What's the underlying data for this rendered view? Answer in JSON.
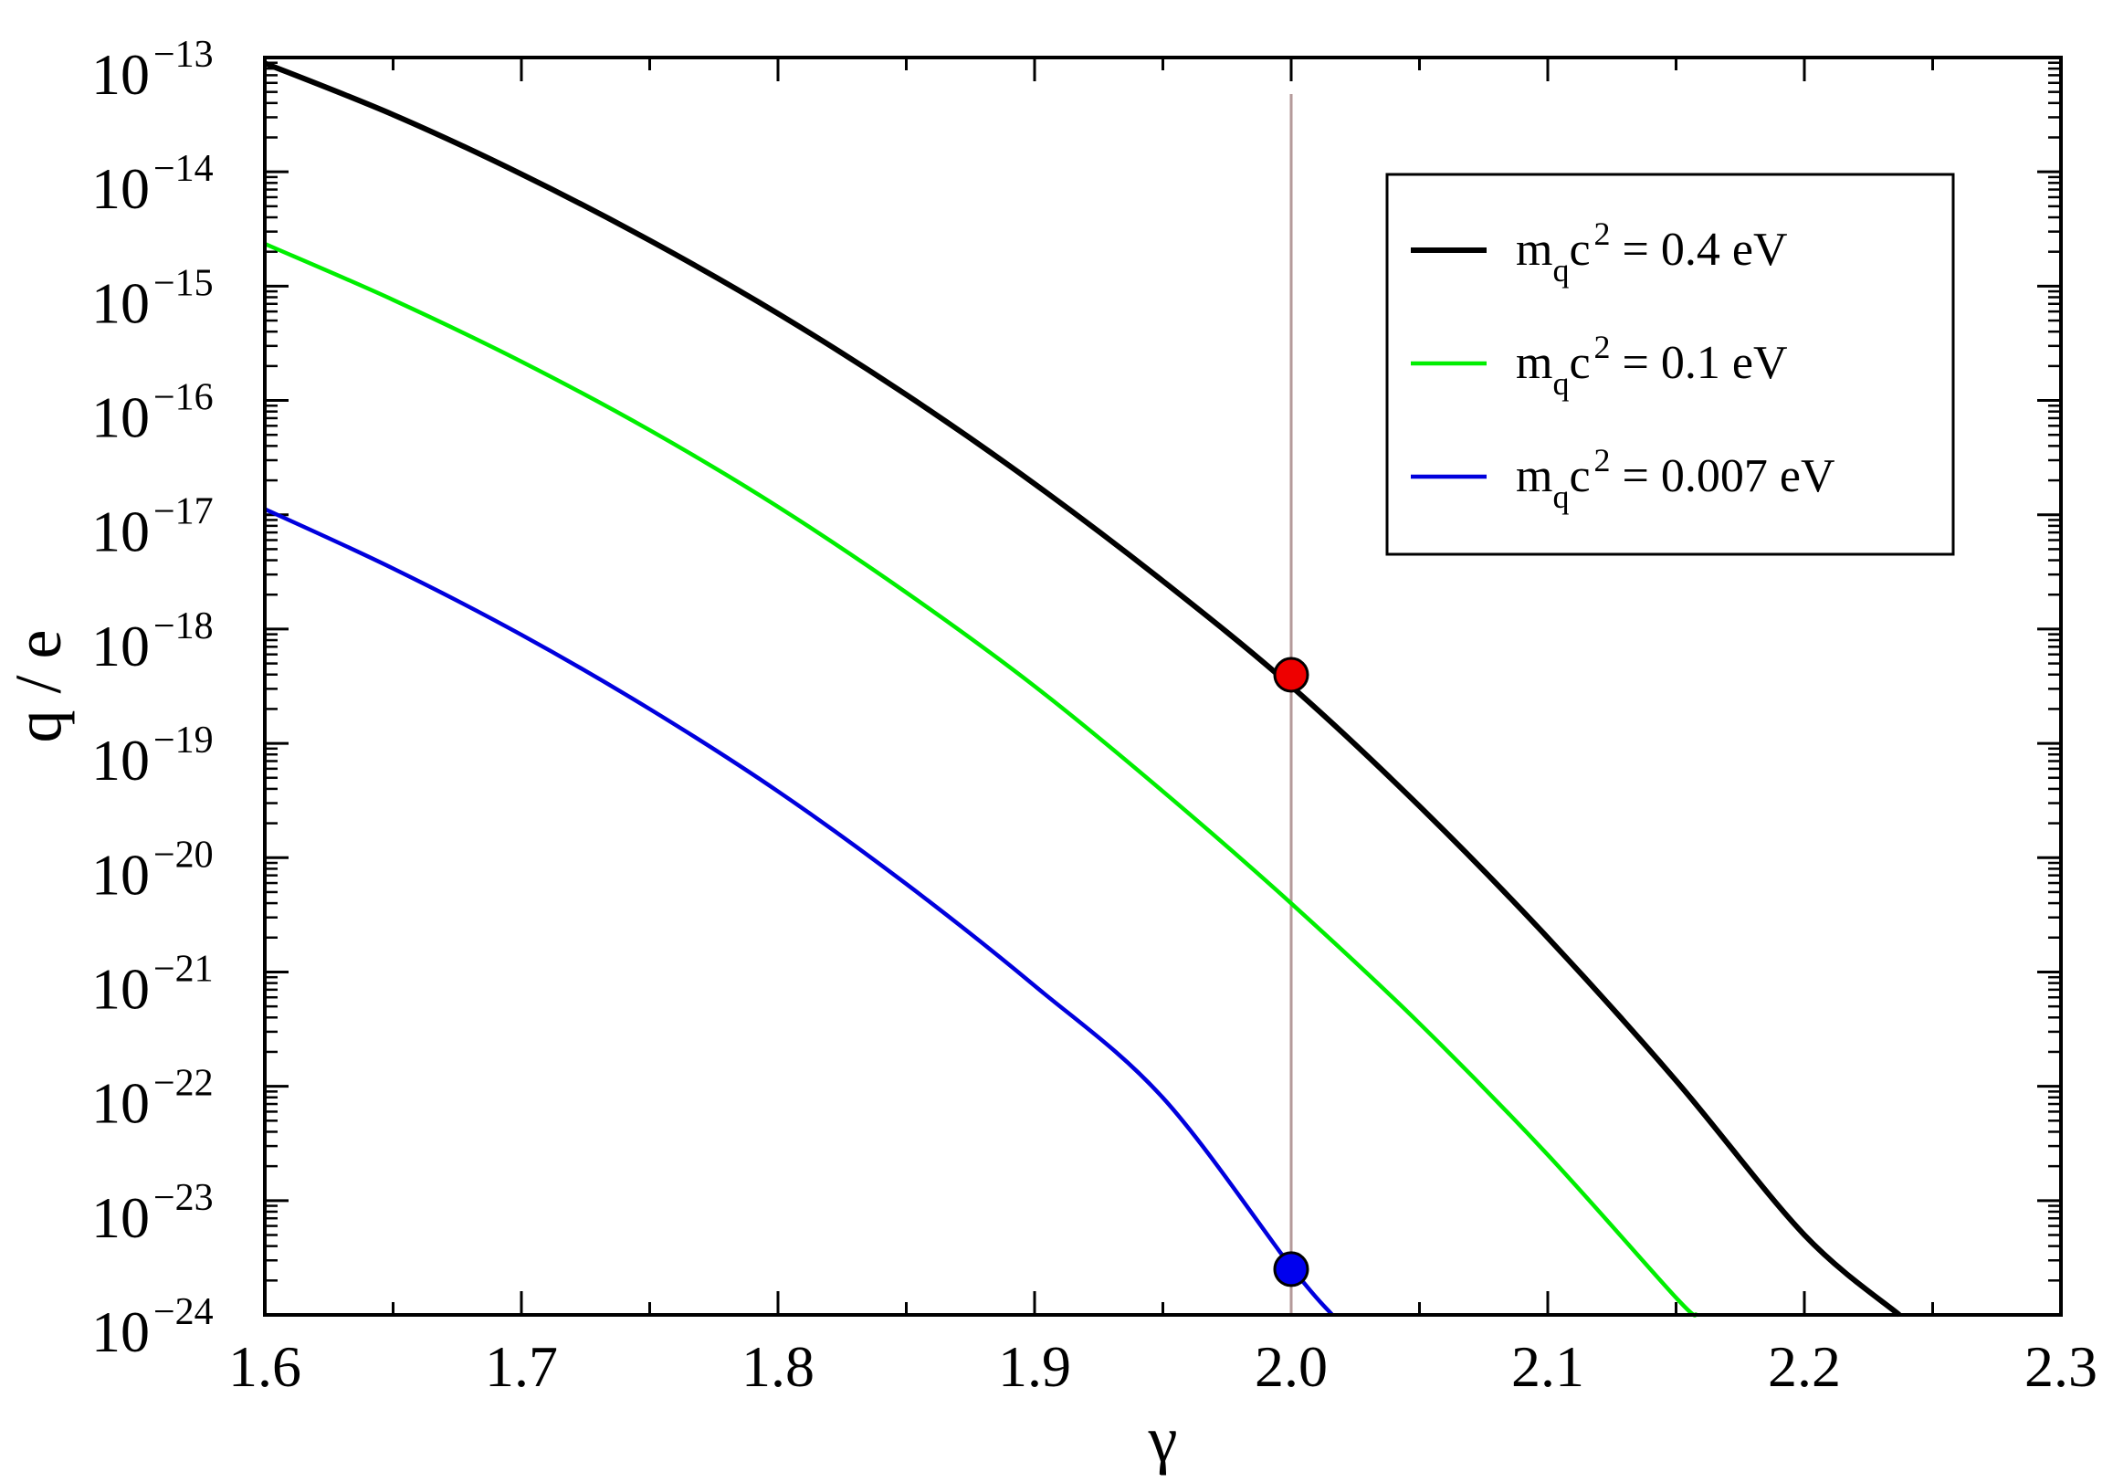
{
  "chart_data": {
    "type": "line",
    "xlabel": "γ",
    "ylabel": "q / e",
    "xlim": [
      1.6,
      2.3
    ],
    "ylim": [
      -24,
      -13
    ],
    "yscale": "log",
    "x_ticks": [
      "1.6",
      "1.7",
      "1.8",
      "1.9",
      "2.0",
      "2.1",
      "2.2",
      "2.3"
    ],
    "x_tick_values": [
      1.6,
      1.7,
      1.8,
      1.9,
      2.0,
      2.1,
      2.2,
      2.3
    ],
    "y_ticks_base": "10",
    "y_tick_exponents": [
      "−13",
      "−14",
      "−15",
      "−16",
      "−17",
      "−18",
      "−19",
      "−20",
      "−21",
      "−22",
      "−23",
      "−24"
    ],
    "y_tick_values": [
      -13,
      -14,
      -15,
      -16,
      -17,
      -18,
      -19,
      -20,
      -21,
      -22,
      -23,
      -24
    ],
    "grid": false,
    "legend_position": "top-right",
    "vertical_line": {
      "x": 2.0,
      "color": "#b49a9a"
    },
    "series": [
      {
        "legend_prefix": "m",
        "legend_sub": "q",
        "legend_mid": "c",
        "legend_sup": "2",
        "legend_suffix": " = 0.4 eV",
        "color": "#000000",
        "x": [
          1.6,
          1.65,
          1.7,
          1.75,
          1.8,
          1.85,
          1.9,
          1.95,
          2.0,
          2.05,
          2.1,
          2.15,
          2.2,
          2.237
        ],
        "log10_y": [
          -13.05,
          -13.5,
          -14.02,
          -14.6,
          -15.24,
          -15.95,
          -16.73,
          -17.58,
          -18.5,
          -19.55,
          -20.7,
          -21.95,
          -23.3,
          -24.0
        ]
      },
      {
        "legend_prefix": "m",
        "legend_sub": "q",
        "legend_mid": "c",
        "legend_sup": "2",
        "legend_suffix": " = 0.1 eV",
        "color": "#00ee00",
        "x": [
          1.6,
          1.65,
          1.7,
          1.75,
          1.8,
          1.85,
          1.9,
          1.95,
          2.0,
          2.05,
          2.1,
          2.15,
          2.158
        ],
        "log10_y": [
          -14.63,
          -15.12,
          -15.66,
          -16.26,
          -16.93,
          -17.68,
          -18.5,
          -19.42,
          -20.4,
          -21.45,
          -22.6,
          -23.85,
          -24.0
        ]
      },
      {
        "legend_prefix": "m",
        "legend_sub": "q",
        "legend_mid": "c",
        "legend_sup": "2",
        "legend_suffix": " = 0.007 eV",
        "color": "#0000dd",
        "x": [
          1.6,
          1.65,
          1.7,
          1.75,
          1.8,
          1.85,
          1.9,
          1.95,
          2.0,
          2.016
        ],
        "log10_y": [
          -16.95,
          -17.47,
          -18.05,
          -18.7,
          -19.42,
          -20.23,
          -21.12,
          -22.1,
          -23.58,
          -24.0
        ]
      }
    ],
    "markers": [
      {
        "x": 2.0,
        "log10_y": -18.4,
        "color": "#ee0000"
      },
      {
        "x": 2.0,
        "log10_y": -23.6,
        "color": "#0000ee"
      }
    ]
  }
}
